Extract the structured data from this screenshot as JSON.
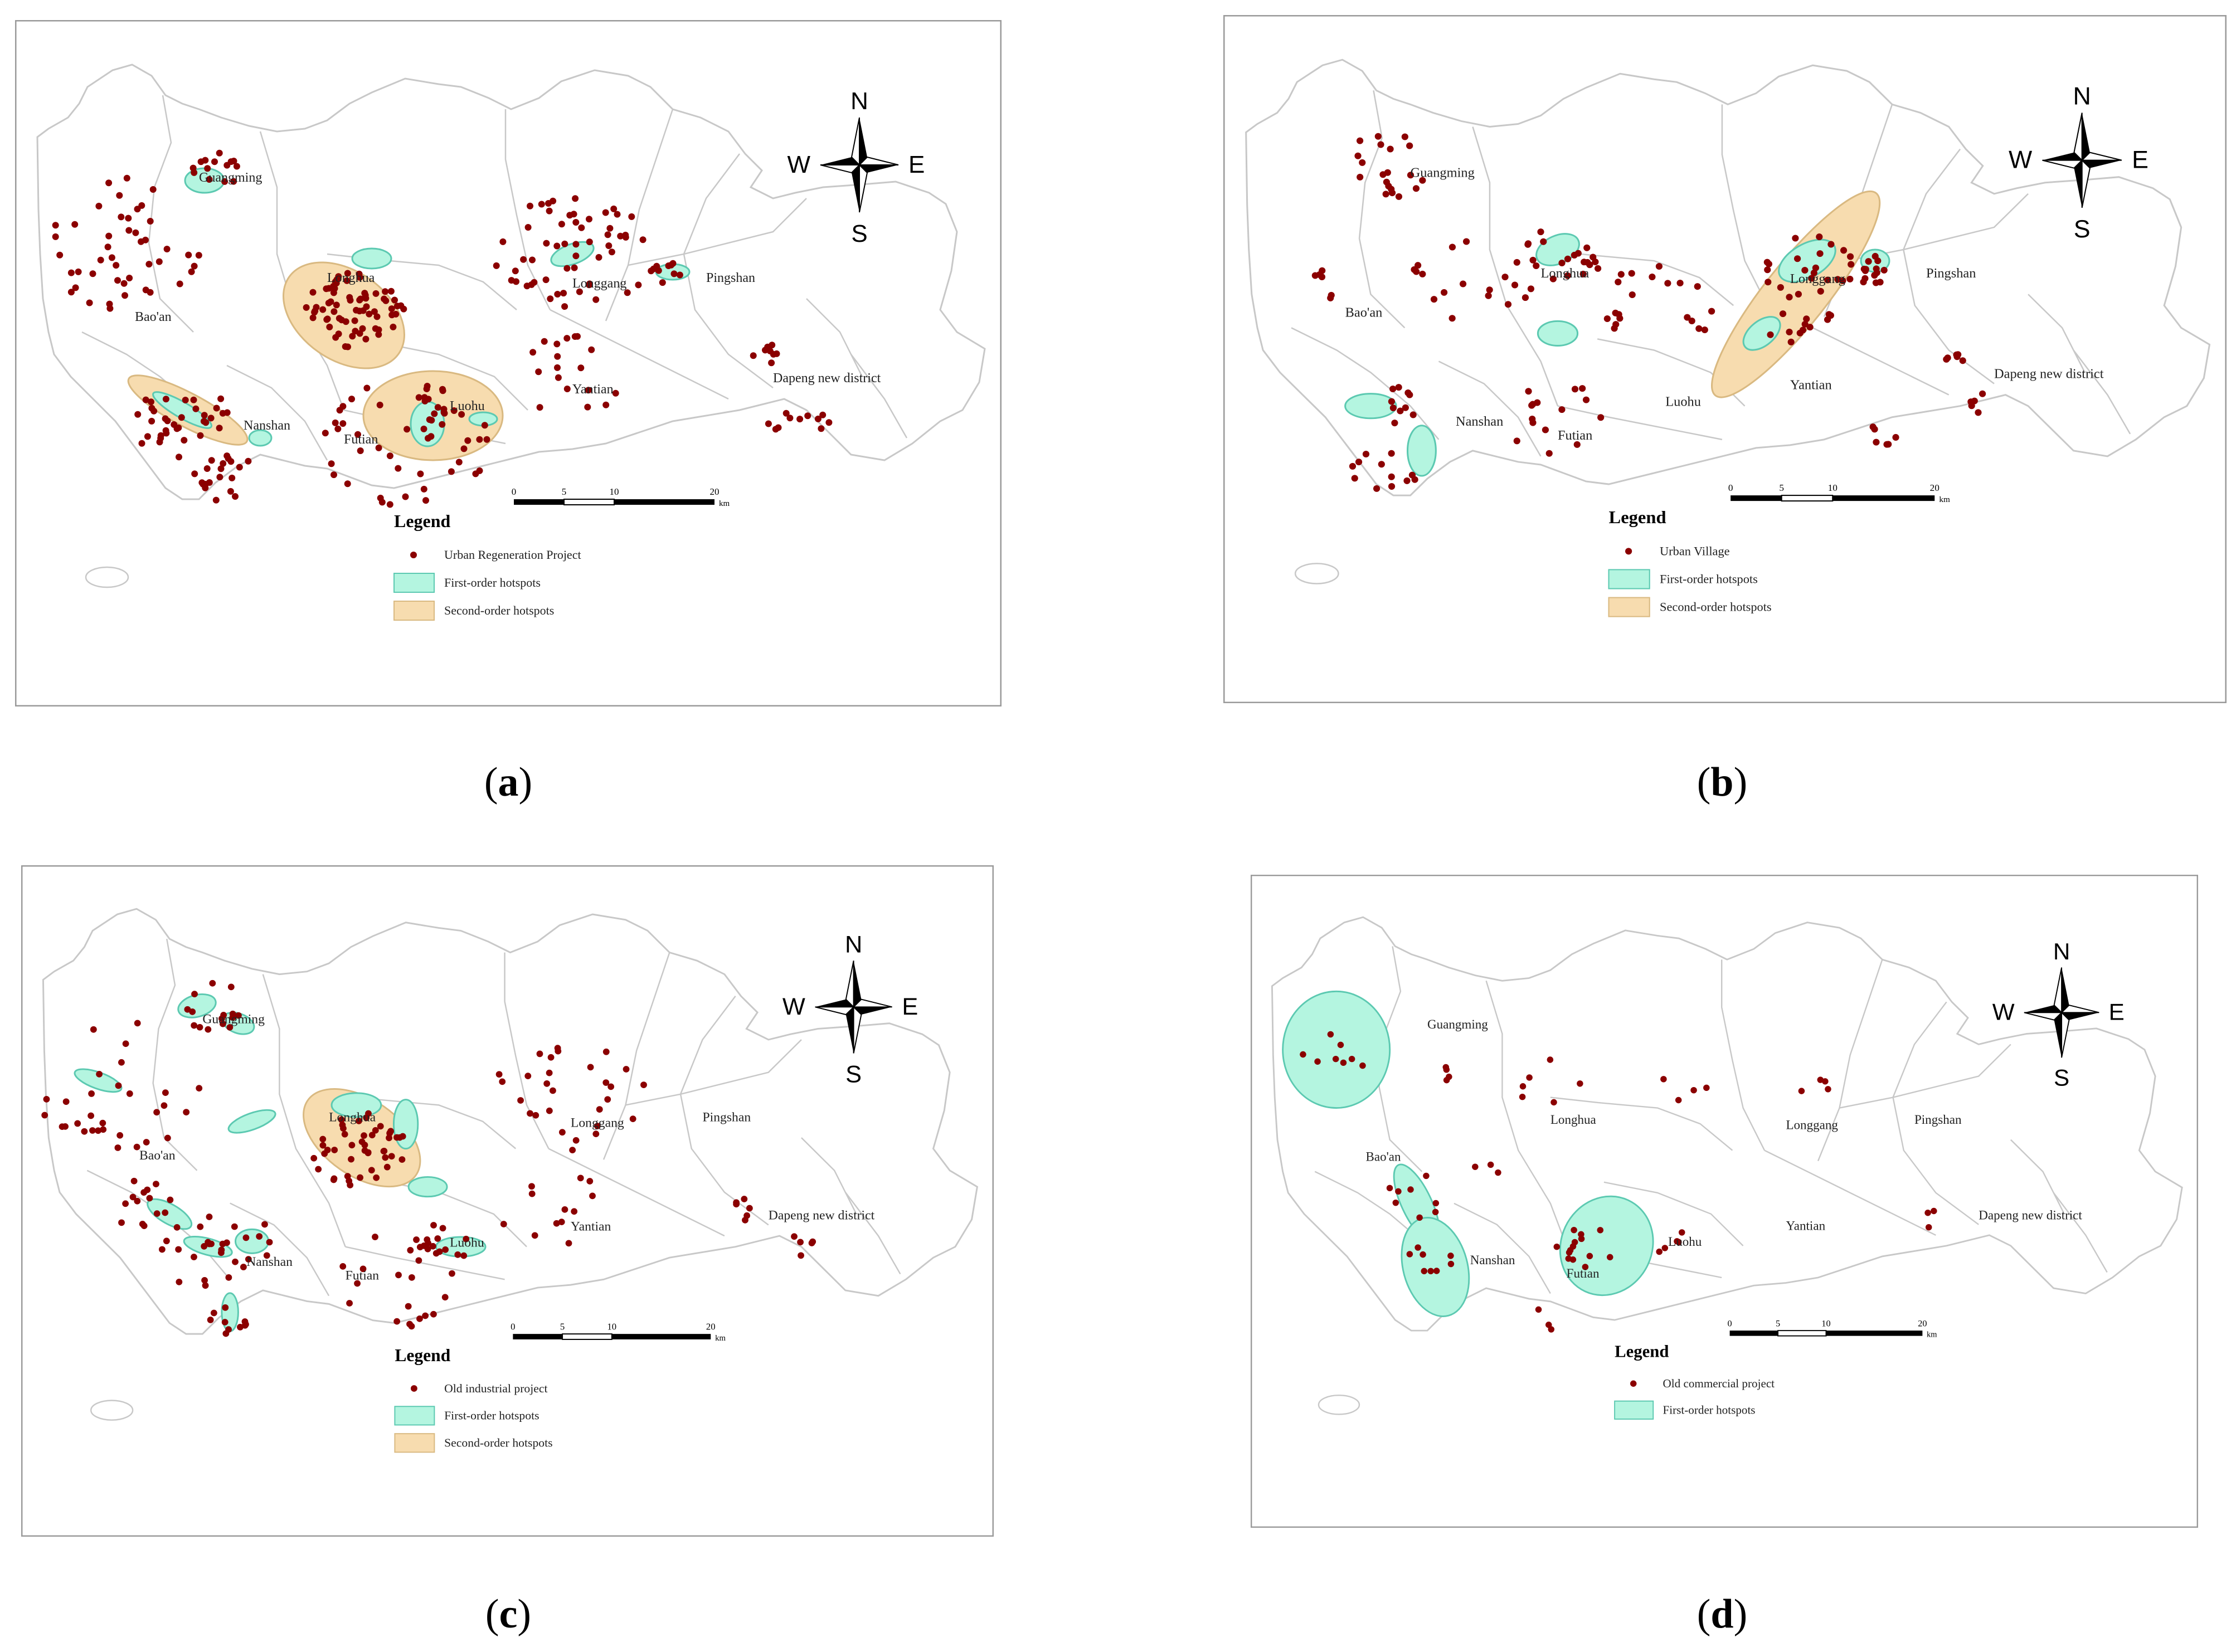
{
  "colors": {
    "point": "#8B0000",
    "first_order": "#b4f5e0",
    "first_order_stroke": "#5cc9b1",
    "second_order": "#f7dcaf",
    "second_order_stroke": "#d9b981",
    "boundary": "#c8c8c8",
    "frame": "#9a9a9a"
  },
  "compass": {
    "north": "N",
    "south": "S",
    "east": "E",
    "west": "W"
  },
  "scale_bar": {
    "ticks": [
      "0",
      "5",
      "10",
      "20"
    ],
    "unit": "km"
  },
  "panels": [
    {
      "id": "a",
      "caption": "a",
      "legend_title": "Legend",
      "legend_items": [
        {
          "type": "point",
          "label": "Urban Regeneration Project"
        },
        {
          "type": "first",
          "label": "First-order hotspots"
        },
        {
          "type": "second",
          "label": "Second-order hotspots"
        }
      ],
      "districts": [
        "Guangming",
        "Longhua",
        "Longgang",
        "Pingshan",
        "Bao'an",
        "Dapeng new district",
        "Yantian",
        "Luohu",
        "Nanshan",
        "Futian"
      ]
    },
    {
      "id": "b",
      "caption": "b",
      "legend_title": "Legend",
      "legend_items": [
        {
          "type": "point",
          "label": "Urban Village"
        },
        {
          "type": "first",
          "label": "First-order hotspots"
        },
        {
          "type": "second",
          "label": "Second-order hotspots"
        }
      ],
      "districts": [
        "Guangming",
        "Longhua",
        "Longgang",
        "Pingshan",
        "Bao'an",
        "Dapeng new district",
        "Yantian",
        "Luohu",
        "Nanshan",
        "Futian"
      ]
    },
    {
      "id": "c",
      "caption": "c",
      "legend_title": "Legend",
      "legend_items": [
        {
          "type": "point",
          "label": "Old industrial project"
        },
        {
          "type": "first",
          "label": "First-order hotspots"
        },
        {
          "type": "second",
          "label": "Second-order hotspots"
        }
      ],
      "districts": [
        "Guangming",
        "Longhua",
        "Longgang",
        "Pingshan",
        "Bao'an",
        "Dapeng new district",
        "Yantian",
        "Luohu",
        "Nanshan",
        "Futian"
      ]
    },
    {
      "id": "d",
      "caption": "d",
      "legend_title": "Legend",
      "legend_items": [
        {
          "type": "point",
          "label": "Old commercial project"
        },
        {
          "type": "first",
          "label": "First-order hotspots"
        }
      ],
      "districts": [
        "Guangming",
        "Longhua",
        "Longgang",
        "Pingshan",
        "Bao'an",
        "Dapeng new district",
        "Yantian",
        "Luohu",
        "Nanshan",
        "Futian"
      ]
    }
  ]
}
